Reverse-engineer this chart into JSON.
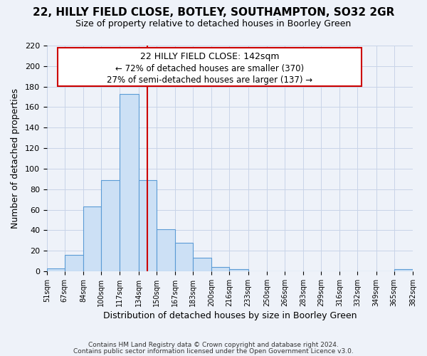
{
  "title": "22, HILLY FIELD CLOSE, BOTLEY, SOUTHAMPTON, SO32 2GR",
  "subtitle": "Size of property relative to detached houses in Boorley Green",
  "xlabel": "Distribution of detached houses by size in Boorley Green",
  "ylabel": "Number of detached properties",
  "footer_lines": [
    "Contains HM Land Registry data © Crown copyright and database right 2024.",
    "Contains public sector information licensed under the Open Government Licence v3.0."
  ],
  "bin_edges": [
    51,
    67,
    84,
    100,
    117,
    134,
    150,
    167,
    183,
    200,
    216,
    233,
    250,
    266,
    283,
    299,
    316,
    332,
    349,
    365,
    382
  ],
  "bar_heights": [
    3,
    16,
    63,
    89,
    173,
    89,
    41,
    28,
    13,
    4,
    2,
    0,
    0,
    0,
    0,
    0,
    0,
    0,
    0,
    2
  ],
  "bar_color": "#cce0f5",
  "bar_edge_color": "#5b9bd5",
  "property_line_x": 142,
  "annotation_title": "22 HILLY FIELD CLOSE: 142sqm",
  "annotation_line1": "← 72% of detached houses are smaller (370)",
  "annotation_line2": "27% of semi-detached houses are larger (137) →",
  "annotation_box_color": "#ffffff",
  "annotation_box_edge_color": "#cc0000",
  "vline_color": "#cc0000",
  "ylim": [
    0,
    220
  ],
  "yticks": [
    0,
    20,
    40,
    60,
    80,
    100,
    120,
    140,
    160,
    180,
    200,
    220
  ],
  "grid_color": "#c8d4e8",
  "bg_color": "#eef2f9",
  "title_fontsize": 11,
  "subtitle_fontsize": 9
}
